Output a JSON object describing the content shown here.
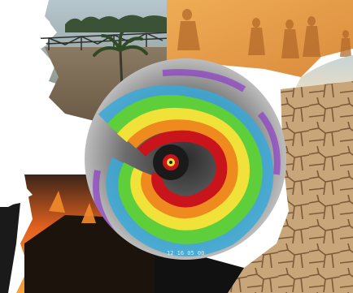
{
  "image": {
    "description_panels": [
      "flood",
      "dust-storm",
      "cyclone-satellite",
      "drought",
      "wildfire"
    ],
    "satellite_timestamp": "12 16 05 00",
    "colors": {
      "flood_water": "#7a6a55",
      "dust_orange": "#e59a45",
      "drought_soil": "#c9a57a",
      "fire_orange": "#e2611f",
      "cyclone_eye_red": "#c8141a"
    }
  }
}
